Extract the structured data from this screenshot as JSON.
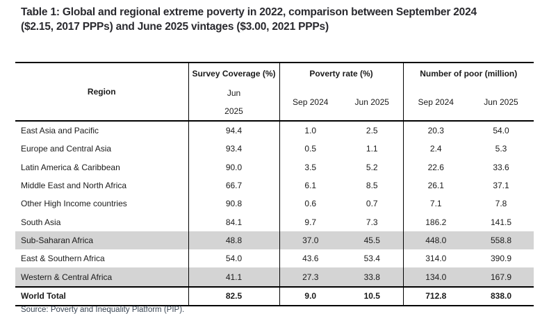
{
  "title": {
    "line1": "Table 1: Global and regional extreme poverty in 2022, comparison between September 2024",
    "line2": "($2.15, 2017 PPPs) and June 2025 vintages ($3.00, 2021 PPPs)"
  },
  "table": {
    "column_groups": {
      "region": "Region",
      "survey_coverage": "Survey Coverage (%)",
      "poverty_rate": "Poverty rate (%)",
      "number_of_poor": "Number of poor (million)"
    },
    "sub_headers": {
      "survey_line1": "Jun",
      "survey_line2": "2025",
      "poverty_sep2024": "Sep 2024",
      "poverty_jun2025": "Jun 2025",
      "poor_sep2024": "Sep 2024",
      "poor_jun2025": "Jun 2025"
    },
    "rows": [
      {
        "region": "East Asia and Pacific",
        "survey_coverage": "94.4",
        "poverty_sep2024": "1.0",
        "poverty_jun2025": "2.5",
        "poor_sep2024": "20.3",
        "poor_jun2025": "54.0",
        "shaded": false
      },
      {
        "region": "Europe and Central Asia",
        "survey_coverage": "93.4",
        "poverty_sep2024": "0.5",
        "poverty_jun2025": "1.1",
        "poor_sep2024": "2.4",
        "poor_jun2025": "5.3",
        "shaded": false
      },
      {
        "region": "Latin America & Caribbean",
        "survey_coverage": "90.0",
        "poverty_sep2024": "3.5",
        "poverty_jun2025": "5.2",
        "poor_sep2024": "22.6",
        "poor_jun2025": "33.6",
        "shaded": false
      },
      {
        "region": "Middle East and North Africa",
        "survey_coverage": "66.7",
        "poverty_sep2024": "6.1",
        "poverty_jun2025": "8.5",
        "poor_sep2024": "26.1",
        "poor_jun2025": "37.1",
        "shaded": false
      },
      {
        "region": "Other High Income countries",
        "survey_coverage": "90.8",
        "poverty_sep2024": "0.6",
        "poverty_jun2025": "0.7",
        "poor_sep2024": "7.1",
        "poor_jun2025": "7.8",
        "shaded": false
      },
      {
        "region": "South Asia",
        "survey_coverage": "84.1",
        "poverty_sep2024": "9.7",
        "poverty_jun2025": "7.3",
        "poor_sep2024": "186.2",
        "poor_jun2025": "141.5",
        "shaded": false
      },
      {
        "region": "Sub-Saharan Africa",
        "survey_coverage": "48.8",
        "poverty_sep2024": "37.0",
        "poverty_jun2025": "45.5",
        "poor_sep2024": "448.0",
        "poor_jun2025": "558.8",
        "shaded": true
      },
      {
        "region": "East & Southern Africa",
        "survey_coverage": "54.0",
        "poverty_sep2024": "43.6",
        "poverty_jun2025": "53.4",
        "poor_sep2024": "314.0",
        "poor_jun2025": "390.9",
        "shaded": false
      },
      {
        "region": "Western & Central Africa",
        "survey_coverage": "41.1",
        "poverty_sep2024": "27.3",
        "poverty_jun2025": "33.8",
        "poor_sep2024": "134.0",
        "poor_jun2025": "167.9",
        "shaded": true
      }
    ],
    "total_row": {
      "region": "World Total",
      "survey_coverage": "82.5",
      "poverty_sep2024": "9.0",
      "poverty_jun2025": "10.5",
      "poor_sep2024": "712.8",
      "poor_jun2025": "838.0",
      "shaded": false
    }
  },
  "footer": {
    "source_note": "Source: Poverty and Inequality Platform (PIP)."
  },
  "colors": {
    "row_shading": "#d4d4d4",
    "border": "#000000",
    "title_text": "#29292e",
    "body_text": "#1a1a1a"
  }
}
